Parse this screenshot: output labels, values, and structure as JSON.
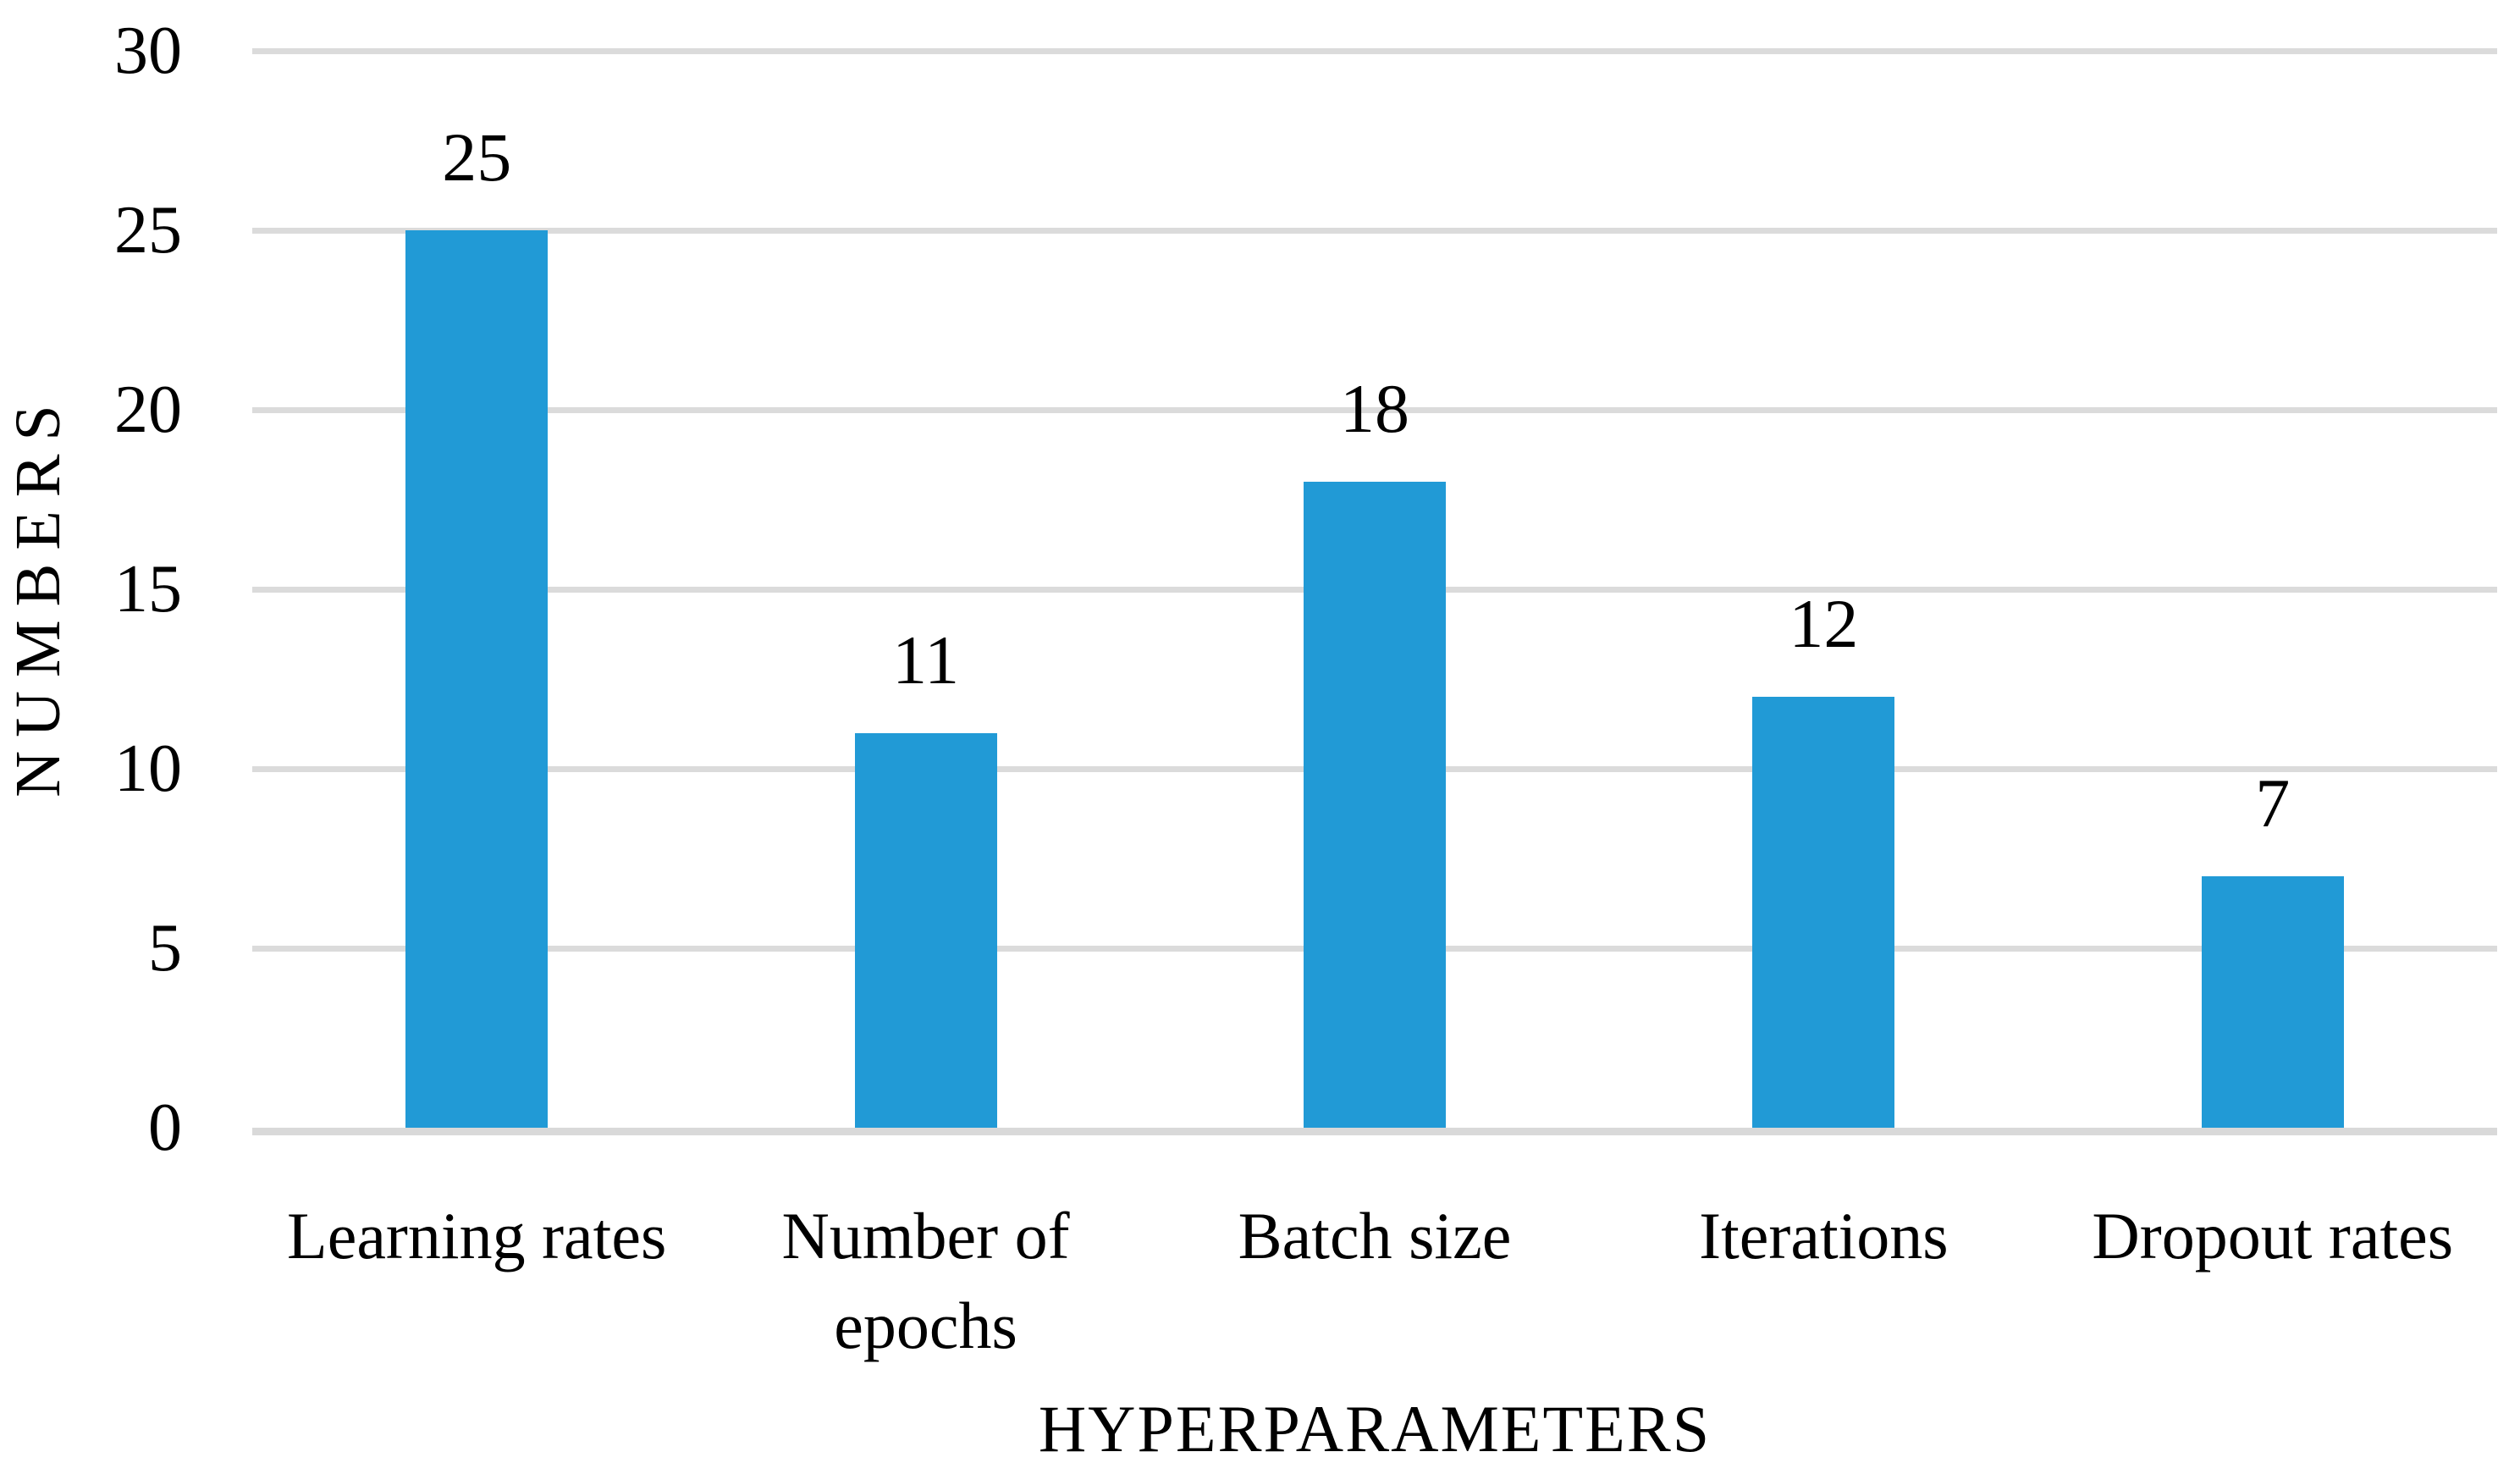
{
  "chart_data": {
    "type": "bar",
    "title": "",
    "categories": [
      "Learning rates",
      "Number of epochs",
      "Batch size",
      "Iterations",
      "Dropout rates"
    ],
    "category_lines": [
      [
        "Learning rates"
      ],
      [
        "Number of",
        "epochs"
      ],
      [
        "Batch size"
      ],
      [
        "Iterations"
      ],
      [
        "Dropout rates"
      ]
    ],
    "values": [
      25,
      11,
      18,
      12,
      7
    ],
    "data_labels": [
      "25",
      "11",
      "18",
      "12",
      "7"
    ],
    "xlabel": "HYPERPARAMETERS",
    "ylabel": "NUMBERS",
    "ylim": [
      0,
      30
    ],
    "yticks": [
      0,
      5,
      10,
      15,
      20,
      25,
      30
    ],
    "ytick_labels": [
      "0",
      "5",
      "10",
      "15",
      "20",
      "25",
      "30"
    ],
    "grid": "horizontal-on",
    "legend_position": "none",
    "bar_color": "#219AD6",
    "gridline_color": "#DBDBDB",
    "axis_line_color": "#D9D9D9",
    "text_color": "#000000",
    "background_color": "#FFFFFF"
  }
}
